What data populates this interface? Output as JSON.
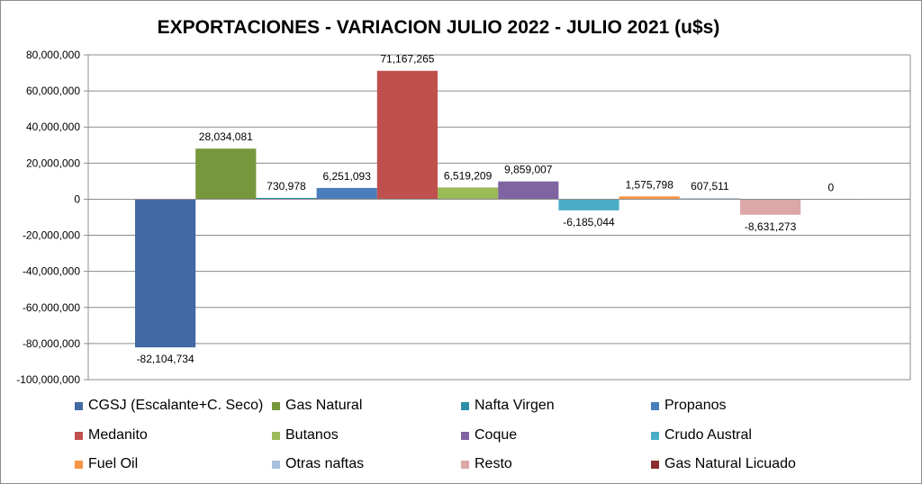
{
  "chart_data": {
    "type": "bar",
    "title": "EXPORTACIONES - VARIACION JULIO 2022 - JULIO 2021 (u$s)",
    "xlabel": "",
    "ylabel": "",
    "ylim": [
      -100000000,
      80000000
    ],
    "yticks": [
      80000000,
      60000000,
      40000000,
      20000000,
      0,
      -20000000,
      -40000000,
      -60000000,
      -80000000,
      -100000000
    ],
    "ytick_labels": [
      "80,000,000",
      "60,000,000",
      "40,000,000",
      "20,000,000",
      "0",
      "-20,000,000",
      "-40,000,000",
      "-60,000,000",
      "-80,000,000",
      "-100,000,000"
    ],
    "grid": true,
    "legend_position": "bottom",
    "series": [
      {
        "name": "CGSJ (Escalante+C. Seco)",
        "value": -82104734,
        "label": "-82,104,734",
        "color": "#4169a3"
      },
      {
        "name": "Gas Natural",
        "value": 28034081,
        "label": "28,034,081",
        "color": "#77973d"
      },
      {
        "name": "Nafta Virgen",
        "value": 730978,
        "label": "730,978",
        "color": "#2e8ea6"
      },
      {
        "name": "Propanos",
        "value": 6251093,
        "label": "6,251,093",
        "color": "#4a7ebb"
      },
      {
        "name": "Medanito",
        "value": 71167265,
        "label": "71,167,265",
        "color": "#c0504d"
      },
      {
        "name": "Butanos",
        "value": 6519209,
        "label": "6,519,209",
        "color": "#9bbb59"
      },
      {
        "name": "Coque",
        "value": 9859007,
        "label": "9,859,007",
        "color": "#8064a2"
      },
      {
        "name": "Crudo Austral",
        "value": -6185044,
        "label": "-6,185,044",
        "color": "#4bacc6"
      },
      {
        "name": "Fuel Oil",
        "value": 1575798,
        "label": "1,575,798",
        "color": "#f79646"
      },
      {
        "name": "Otras naftas",
        "value": 607511,
        "label": "607,511",
        "color": "#a7c0de"
      },
      {
        "name": "Resto",
        "value": -8631273,
        "label": "-8,631,273",
        "color": "#dba8a7"
      },
      {
        "name": "Gas Natural Licuado",
        "value": 0,
        "label": "0",
        "color": "#8b2e2b"
      }
    ]
  }
}
